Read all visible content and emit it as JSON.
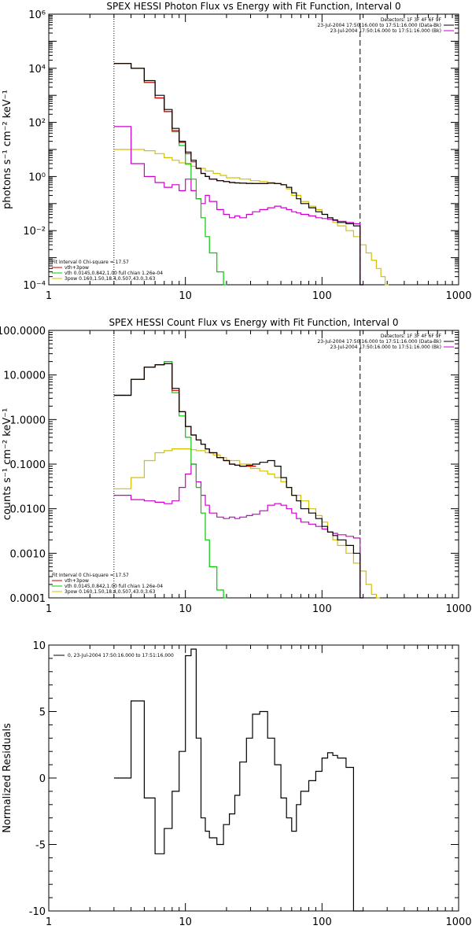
{
  "colors": {
    "data": "#000000",
    "fit_total": "#cc0000",
    "vth": "#00cc00",
    "3pow": "#d4c000",
    "bk": "#cc00cc"
  },
  "chart_data": [
    {
      "type": "line",
      "title": "SPEX HESSI Photon Flux vs Energy with Fit Function, Interval 0",
      "xlabel": "",
      "ylabel": "photons s⁻¹ cm⁻² keV⁻¹",
      "xscale": "log",
      "yscale": "log",
      "xlim": [
        1,
        1000
      ],
      "ylim": [
        0.0001,
        1000000
      ],
      "x_ticks": [
        {
          "v": 1,
          "label": "1"
        },
        {
          "v": 10,
          "label": "10"
        },
        {
          "v": 100,
          "label": "100"
        },
        {
          "v": 1000,
          "label": "1000"
        }
      ],
      "y_ticks": [
        {
          "v": 0.0001,
          "label": "10⁻⁴"
        },
        {
          "v": 0.01,
          "label": "10⁻²"
        },
        {
          "v": 1,
          "label": "10⁰"
        },
        {
          "v": 100,
          "label": "10²"
        },
        {
          "v": 10000,
          "label": "10⁴"
        },
        {
          "v": 1000000,
          "label": "10⁶"
        }
      ],
      "vlines": [
        {
          "x": 3,
          "style": "dotted"
        },
        {
          "x": 190,
          "style": "dashed"
        }
      ],
      "header": [
        "Detectors: 1F 3F 4F 6F 9F",
        "23-Jul-2004 17:50:16.000 to 17:51:16.000 (Data-Bk)",
        "23-Jul-2004 17:50:16.000 to 17:51:16.000 (Bk)"
      ],
      "fit_text": [
        "Fit Interval 0   Chi-square = 17.57",
        "vth+3pow",
        "vth 0.0145,0.842,1.00  full chian 1.26e-04",
        "3pow 0.160,1.50,18.4,0.507,43.0,3.63"
      ],
      "series": [
        {
          "key": "data",
          "x": [
            3,
            4,
            5,
            6,
            7,
            8,
            9,
            10,
            11,
            12,
            13,
            14,
            15,
            17,
            19,
            21,
            23,
            25,
            28,
            31,
            35,
            40,
            45,
            50,
            55,
            60,
            65,
            70,
            80,
            90,
            100,
            110,
            120,
            130,
            150,
            170,
            190
          ],
          "y": [
            15000,
            10000,
            3500,
            1000,
            300,
            60,
            20,
            8,
            4,
            2,
            1.3,
            1,
            0.8,
            0.7,
            0.65,
            0.6,
            0.58,
            0.57,
            0.56,
            0.55,
            0.55,
            0.57,
            0.55,
            0.5,
            0.4,
            0.25,
            0.15,
            0.1,
            0.07,
            0.05,
            0.04,
            0.03,
            0.025,
            0.02,
            0.018,
            0.015,
            0.0001
          ]
        },
        {
          "key": "fit_total",
          "x": [
            3,
            4,
            5,
            6,
            7,
            8,
            9,
            10,
            11,
            12,
            13,
            14,
            15,
            17,
            19,
            21,
            23,
            25,
            28,
            31,
            35,
            40,
            45,
            50
          ],
          "y": [
            15000,
            10000,
            3000,
            800,
            250,
            50,
            18,
            7,
            3.5,
            2,
            1.3,
            1,
            0.8,
            0.7,
            0.65,
            0.6,
            0.58,
            0.57,
            0.56,
            0.55,
            0.55,
            0.57,
            0.55,
            0.5
          ]
        },
        {
          "key": "vth",
          "x": [
            3,
            4,
            5,
            6,
            7,
            8,
            9,
            10,
            11,
            12,
            13,
            14,
            15,
            17,
            19
          ],
          "y": [
            15000,
            10000,
            3000,
            800,
            250,
            45,
            14,
            3,
            0.8,
            0.15,
            0.03,
            0.006,
            0.0015,
            0.0003,
            0.0001
          ]
        },
        {
          "key": "3pow",
          "x": [
            3,
            4,
            5,
            6,
            7,
            8,
            9,
            10,
            11,
            12,
            14,
            16,
            18,
            20,
            25,
            30,
            35,
            40,
            45,
            50,
            55,
            60,
            70,
            80,
            90,
            100,
            110,
            120,
            130,
            150,
            170,
            190,
            210,
            230,
            250,
            270,
            290
          ],
          "y": [
            10,
            10,
            9,
            7,
            5,
            4,
            3.2,
            2.8,
            2.4,
            2,
            1.6,
            1.3,
            1.1,
            0.9,
            0.8,
            0.7,
            0.65,
            0.6,
            0.55,
            0.5,
            0.35,
            0.2,
            0.12,
            0.08,
            0.06,
            0.04,
            0.03,
            0.02,
            0.015,
            0.01,
            0.006,
            0.003,
            0.0015,
            0.0008,
            0.0004,
            0.0002,
            0.0001
          ]
        },
        {
          "key": "bk",
          "x": [
            3,
            4,
            5,
            6,
            7,
            8,
            9,
            10,
            11,
            12,
            13,
            14,
            15,
            17,
            19,
            21,
            23,
            25,
            28,
            31,
            35,
            40,
            45,
            50,
            55,
            60,
            65,
            70,
            80,
            90,
            100,
            110,
            120,
            130,
            150,
            170,
            190
          ],
          "y": [
            70,
            3,
            1,
            0.6,
            0.4,
            0.5,
            0.3,
            0.8,
            0.3,
            0.15,
            0.1,
            0.2,
            0.12,
            0.06,
            0.04,
            0.03,
            0.035,
            0.03,
            0.04,
            0.05,
            0.06,
            0.07,
            0.08,
            0.07,
            0.06,
            0.05,
            0.045,
            0.04,
            0.035,
            0.03,
            0.028,
            0.026,
            0.024,
            0.022,
            0.02,
            0.018,
            0.0001
          ]
        }
      ]
    },
    {
      "type": "line",
      "title": "SPEX HESSI Count Flux vs Energy with Fit Function, Interval 0",
      "xlabel": "",
      "ylabel": "counts s⁻¹ cm⁻² keV⁻¹",
      "xscale": "log",
      "yscale": "log",
      "xlim": [
        1,
        1000
      ],
      "ylim": [
        0.0001,
        100
      ],
      "x_ticks": [
        {
          "v": 1,
          "label": "1"
        },
        {
          "v": 10,
          "label": "10"
        },
        {
          "v": 100,
          "label": "100"
        },
        {
          "v": 1000,
          "label": "1000"
        }
      ],
      "y_ticks": [
        {
          "v": 0.0001,
          "label": "0.0001"
        },
        {
          "v": 0.001,
          "label": "0.0010"
        },
        {
          "v": 0.01,
          "label": "0.0100"
        },
        {
          "v": 0.1,
          "label": "0.1000"
        },
        {
          "v": 1,
          "label": "1.0000"
        },
        {
          "v": 10,
          "label": "10.0000"
        },
        {
          "v": 100,
          "label": "100.0000"
        }
      ],
      "vlines": [
        {
          "x": 3,
          "style": "dotted"
        },
        {
          "x": 190,
          "style": "dashed"
        }
      ],
      "header": [
        "Detectors: 1F 3F 4F 6F 9F",
        "23-Jul-2004 17:50:16.000 to 17:51:16.000 (Data-Bk)",
        "23-Jul-2004 17:50:16.000 to 17:51:16.000 (Bk)"
      ],
      "fit_text": [
        "Fit Interval 0   Chi-square = 17.57",
        "vth+3pow",
        "vth 0.0145,0.842,1.00  full chian 1.26e-04",
        "3pow 0.160,1.50,18.4,0.507,43.0,3.63"
      ],
      "series": [
        {
          "key": "data",
          "x": [
            3,
            4,
            5,
            6,
            7,
            8,
            9,
            10,
            11,
            12,
            13,
            14,
            15,
            17,
            19,
            21,
            23,
            25,
            28,
            31,
            35,
            40,
            45,
            50,
            55,
            60,
            65,
            70,
            80,
            90,
            100,
            110,
            120,
            130,
            150,
            170,
            190
          ],
          "y": [
            3.5,
            8,
            15,
            17,
            18,
            5,
            1.5,
            0.7,
            0.45,
            0.35,
            0.28,
            0.22,
            0.18,
            0.14,
            0.12,
            0.1,
            0.095,
            0.09,
            0.095,
            0.1,
            0.11,
            0.12,
            0.09,
            0.05,
            0.03,
            0.02,
            0.015,
            0.01,
            0.008,
            0.006,
            0.004,
            0.003,
            0.0025,
            0.002,
            0.0015,
            0.001,
            0.0001
          ]
        },
        {
          "key": "fit_total",
          "x": [
            3,
            4,
            5,
            6,
            7,
            8,
            9,
            10,
            11,
            12,
            13,
            14,
            15,
            17,
            19,
            21,
            23,
            25,
            28,
            31
          ],
          "y": [
            3.5,
            8,
            15,
            17,
            18,
            4.5,
            1.5,
            0.7,
            0.45,
            0.35,
            0.28,
            0.22,
            0.18,
            0.14,
            0.12,
            0.1,
            0.095,
            0.09,
            0.09,
            0.09
          ]
        },
        {
          "key": "vth",
          "x": [
            3,
            4,
            5,
            6,
            7,
            8,
            9,
            10,
            11,
            12,
            13,
            14,
            15,
            17,
            19
          ],
          "y": [
            3.5,
            8,
            15,
            17,
            20,
            4,
            1.2,
            0.4,
            0.1,
            0.03,
            0.008,
            0.002,
            0.0005,
            0.00015,
            0.0001
          ]
        },
        {
          "key": "3pow",
          "x": [
            3,
            4,
            5,
            6,
            7,
            8,
            9,
            10,
            11,
            12,
            14,
            16,
            18,
            20,
            25,
            30,
            35,
            40,
            45,
            50,
            55,
            60,
            70,
            80,
            90,
            100,
            110,
            120,
            130,
            150,
            170,
            190,
            210,
            230,
            250
          ],
          "y": [
            0.028,
            0.05,
            0.12,
            0.18,
            0.2,
            0.22,
            0.22,
            0.22,
            0.21,
            0.2,
            0.18,
            0.16,
            0.14,
            0.12,
            0.1,
            0.08,
            0.07,
            0.06,
            0.05,
            0.04,
            0.03,
            0.02,
            0.015,
            0.01,
            0.007,
            0.005,
            0.003,
            0.002,
            0.0015,
            0.001,
            0.0006,
            0.0004,
            0.0002,
            0.00012,
            0.0001
          ]
        },
        {
          "key": "bk",
          "x": [
            3,
            4,
            5,
            6,
            7,
            8,
            9,
            10,
            11,
            12,
            13,
            14,
            15,
            17,
            19,
            21,
            23,
            25,
            28,
            31,
            35,
            40,
            45,
            50,
            55,
            60,
            65,
            70,
            80,
            90,
            100,
            110,
            120,
            130,
            150,
            170,
            190
          ],
          "y": [
            0.02,
            0.016,
            0.015,
            0.014,
            0.013,
            0.015,
            0.03,
            0.06,
            0.1,
            0.04,
            0.02,
            0.012,
            0.008,
            0.0065,
            0.006,
            0.0065,
            0.006,
            0.0065,
            0.007,
            0.0075,
            0.009,
            0.012,
            0.013,
            0.012,
            0.01,
            0.008,
            0.006,
            0.005,
            0.0045,
            0.004,
            0.0035,
            0.003,
            0.0028,
            0.0026,
            0.0024,
            0.0022,
            0.0001
          ]
        }
      ]
    },
    {
      "type": "line",
      "title": "",
      "xlabel": "",
      "ylabel": "Normalized Residuals",
      "xscale": "log",
      "yscale": "linear",
      "xlim": [
        1,
        1000
      ],
      "ylim": [
        -10,
        10
      ],
      "x_ticks": [
        {
          "v": 1,
          "label": "1"
        },
        {
          "v": 10,
          "label": "10"
        },
        {
          "v": 100,
          "label": "100"
        },
        {
          "v": 1000,
          "label": "1000"
        }
      ],
      "y_ticks": [
        {
          "v": -10,
          "label": "-10"
        },
        {
          "v": -5,
          "label": "-5"
        },
        {
          "v": 0,
          "label": "0"
        },
        {
          "v": 5,
          "label": "5"
        },
        {
          "v": 10,
          "label": "10"
        }
      ],
      "legend": "0, 23-Jul-2004 17:50:16.000 to 17:51:16.000",
      "series": [
        {
          "key": "data",
          "x": [
            3,
            4,
            5,
            6,
            7,
            8,
            9,
            10,
            11,
            12,
            13,
            14,
            15,
            17,
            19,
            21,
            23,
            25,
            28,
            31,
            35,
            40,
            45,
            50,
            55,
            60,
            65,
            70,
            80,
            90,
            100,
            110,
            120,
            130,
            150,
            170,
            190
          ],
          "y": [
            0,
            5.8,
            -1.5,
            -5.7,
            -3.8,
            -1,
            2,
            9.2,
            9.7,
            3,
            -3,
            -4,
            -4.5,
            -5,
            -3.5,
            -2.7,
            -1.3,
            1.2,
            3,
            4.8,
            5,
            3,
            1,
            -1.5,
            -3,
            -4,
            -2,
            -1,
            -0.2,
            0.5,
            1.5,
            1.9,
            1.7,
            1.5,
            0.8,
            -10,
            -10
          ]
        }
      ]
    }
  ]
}
